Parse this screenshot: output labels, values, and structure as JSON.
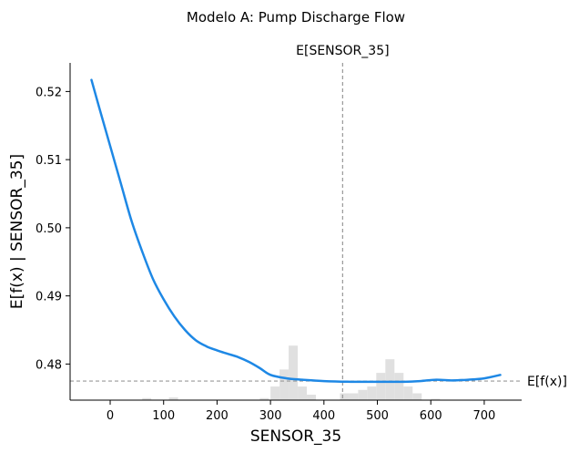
{
  "chart_data": {
    "type": "line",
    "title": "Modelo A: Pump Discharge Flow",
    "xlabel": "SENSOR_35",
    "ylabel": "E[f(x) | SENSOR_35]",
    "xlim": [
      -75,
      770
    ],
    "ylim": [
      0.4747,
      0.5242
    ],
    "x_ticks": [
      0,
      100,
      200,
      300,
      400,
      500,
      600,
      700
    ],
    "y_ticks": [
      0.48,
      0.49,
      0.5,
      0.51,
      0.52
    ],
    "y_tick_labels": [
      "0.48",
      "0.49",
      "0.50",
      "0.51",
      "0.52"
    ],
    "grid": false,
    "colors": {
      "line": "#1e88e5",
      "hist": "#e0e0e0",
      "ref": "#999999"
    },
    "expected_x": {
      "label": "E[SENSOR_35]",
      "value": 435
    },
    "expected_y": {
      "label": "E[f(x)]",
      "value": 0.4775
    },
    "series": [
      {
        "x": [
          -35,
          -20,
          0,
          20,
          40,
          60,
          80,
          100,
          120,
          140,
          160,
          180,
          200,
          220,
          240,
          260,
          280,
          300,
          330,
          360,
          400,
          450,
          500,
          550,
          580,
          610,
          640,
          670,
          700,
          730
        ],
        "y": [
          0.5217,
          0.5175,
          0.512,
          0.5065,
          0.501,
          0.4965,
          0.4925,
          0.4895,
          0.487,
          0.485,
          0.4835,
          0.4826,
          0.482,
          0.4815,
          0.481,
          0.4803,
          0.4794,
          0.4784,
          0.4779,
          0.4777,
          0.4775,
          0.4774,
          0.4774,
          0.4774,
          0.4775,
          0.4777,
          0.4776,
          0.4777,
          0.4779,
          0.4784
        ]
      }
    ],
    "histogram": {
      "bin_width": 17,
      "bins": [
        {
          "x": 60,
          "h": 0.0003
        },
        {
          "x": 110,
          "h": 0.0004
        },
        {
          "x": 280,
          "h": 0.0003
        },
        {
          "x": 300,
          "h": 0.002
        },
        {
          "x": 317,
          "h": 0.0045
        },
        {
          "x": 334,
          "h": 0.008
        },
        {
          "x": 351,
          "h": 0.002
        },
        {
          "x": 368,
          "h": 0.0008
        },
        {
          "x": 430,
          "h": 0.001
        },
        {
          "x": 447,
          "h": 0.001
        },
        {
          "x": 464,
          "h": 0.0015
        },
        {
          "x": 481,
          "h": 0.002
        },
        {
          "x": 498,
          "h": 0.004
        },
        {
          "x": 515,
          "h": 0.006
        },
        {
          "x": 532,
          "h": 0.004
        },
        {
          "x": 549,
          "h": 0.002
        },
        {
          "x": 566,
          "h": 0.001
        },
        {
          "x": 600,
          "h": 0.0002
        }
      ]
    }
  }
}
